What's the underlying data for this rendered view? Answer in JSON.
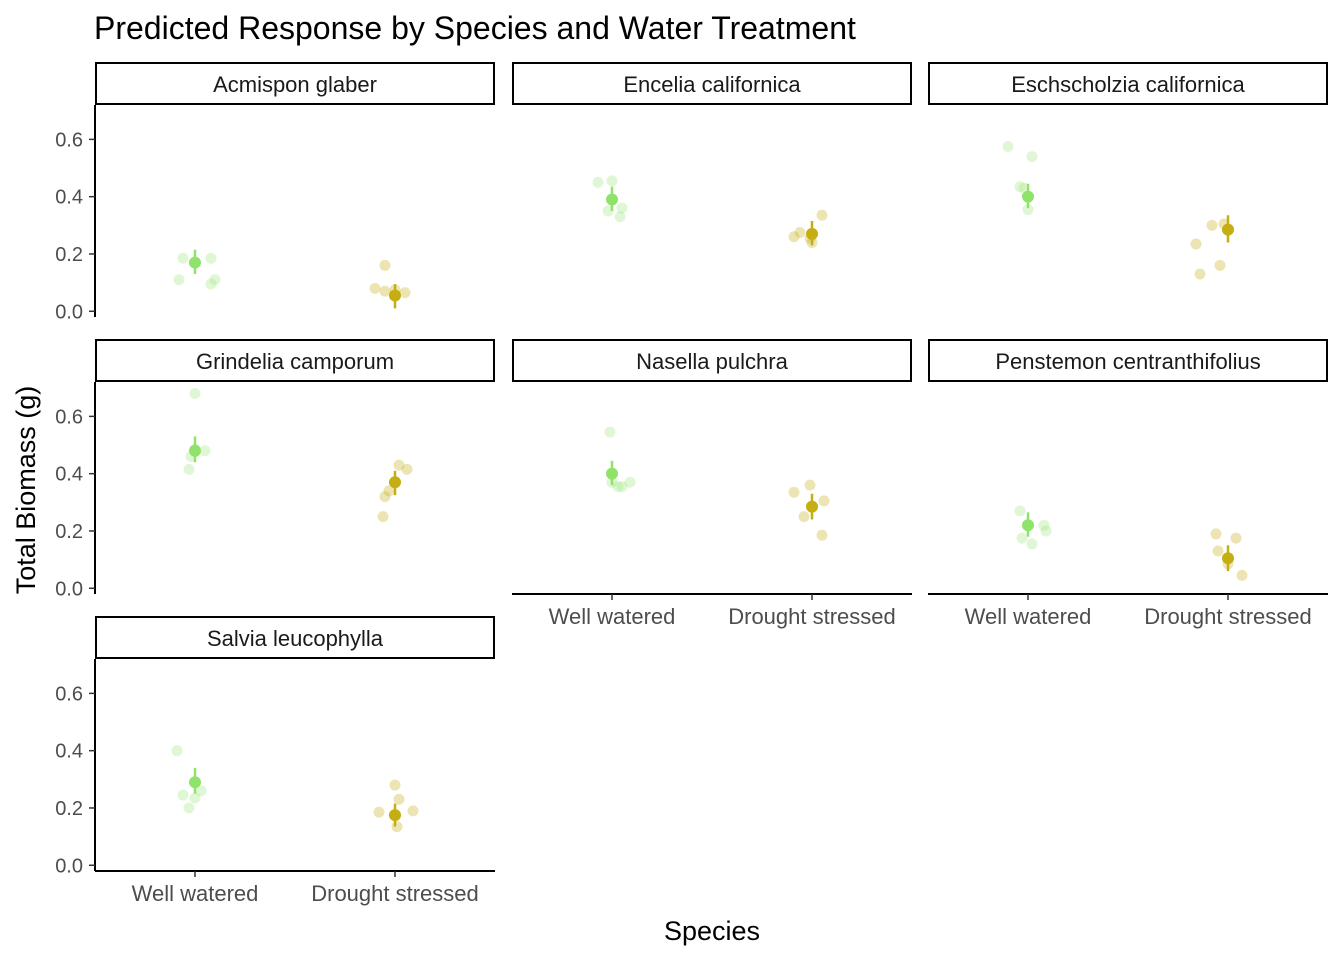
{
  "chart_data": {
    "type": "scatter",
    "title": "Predicted Response by Species and Water Treatment",
    "xlabel": "Species",
    "ylabel": "Total Biomass (g)",
    "categories": [
      "Well watered",
      "Drought stressed"
    ],
    "ylim": [
      -0.02,
      0.72
    ],
    "yticks": [
      "0.0",
      "0.2",
      "0.4",
      "0.6"
    ],
    "colors": {
      "Well watered": "#90E36A",
      "Drought stressed": "#C4AE12"
    },
    "grid": false,
    "legend": "none",
    "panels": [
      {
        "facet": "Acmispon glaber",
        "mean": [
          0.17,
          0.055
        ],
        "ci": [
          [
            0.13,
            0.215
          ],
          [
            0.01,
            0.095
          ]
        ],
        "raw": [
          [
            [
              -0.08,
              0.11
            ],
            [
              -0.06,
              0.185
            ],
            [
              0.08,
              0.095
            ],
            [
              0.1,
              0.11
            ],
            [
              0.08,
              0.185
            ]
          ],
          [
            [
              -0.1,
              0.08
            ],
            [
              -0.05,
              0.07
            ],
            [
              -0.05,
              0.16
            ],
            [
              0.05,
              0.065
            ],
            [
              0.0,
              0.075
            ]
          ]
        ]
      },
      {
        "facet": "Encelia californica",
        "mean": [
          0.39,
          0.27
        ],
        "ci": [
          [
            0.35,
            0.435
          ],
          [
            0.23,
            0.315
          ]
        ],
        "raw": [
          [
            [
              -0.07,
              0.45
            ],
            [
              0.0,
              0.455
            ],
            [
              -0.02,
              0.35
            ],
            [
              0.05,
              0.36
            ],
            [
              0.04,
              0.33
            ]
          ],
          [
            [
              -0.09,
              0.26
            ],
            [
              -0.06,
              0.275
            ],
            [
              0.0,
              0.24
            ],
            [
              0.05,
              0.335
            ],
            [
              -0.01,
              0.255
            ]
          ]
        ]
      },
      {
        "facet": "Eschscholzia californica",
        "mean": [
          0.4,
          0.285
        ],
        "ci": [
          [
            0.36,
            0.445
          ],
          [
            0.24,
            0.335
          ]
        ],
        "raw": [
          [
            [
              -0.1,
              0.575
            ],
            [
              0.02,
              0.54
            ],
            [
              -0.04,
              0.435
            ],
            [
              0.0,
              0.355
            ],
            [
              -0.02,
              0.43
            ]
          ],
          [
            [
              -0.16,
              0.235
            ],
            [
              -0.08,
              0.3
            ],
            [
              -0.04,
              0.16
            ],
            [
              -0.14,
              0.13
            ],
            [
              -0.02,
              0.305
            ]
          ]
        ]
      },
      {
        "facet": "Grindelia camporum",
        "mean": [
          0.48,
          0.37
        ],
        "ci": [
          [
            0.44,
            0.53
          ],
          [
            0.325,
            0.41
          ]
        ],
        "raw": [
          [
            [
              -0.03,
              0.415
            ],
            [
              0.0,
              0.68
            ],
            [
              0.05,
              0.48
            ],
            [
              0.0,
              0.485
            ],
            [
              -0.02,
              0.46
            ]
          ],
          [
            [
              -0.06,
              0.25
            ],
            [
              -0.05,
              0.32
            ],
            [
              0.02,
              0.43
            ],
            [
              0.06,
              0.415
            ],
            [
              -0.03,
              0.34
            ]
          ]
        ]
      },
      {
        "facet": "Nasella pulchra",
        "mean": [
          0.4,
          0.285
        ],
        "ci": [
          [
            0.36,
            0.445
          ],
          [
            0.24,
            0.33
          ]
        ],
        "raw": [
          [
            [
              -0.01,
              0.545
            ],
            [
              0.0,
              0.37
            ],
            [
              0.05,
              0.355
            ],
            [
              0.09,
              0.37
            ],
            [
              0.03,
              0.355
            ]
          ],
          [
            [
              -0.09,
              0.335
            ],
            [
              -0.04,
              0.25
            ],
            [
              -0.01,
              0.36
            ],
            [
              0.06,
              0.305
            ],
            [
              0.05,
              0.185
            ]
          ]
        ]
      },
      {
        "facet": "Penstemon centranthifolius",
        "mean": [
          0.22,
          0.105
        ],
        "ci": [
          [
            0.18,
            0.265
          ],
          [
            0.06,
            0.15
          ]
        ],
        "raw": [
          [
            [
              -0.04,
              0.27
            ],
            [
              -0.03,
              0.175
            ],
            [
              0.02,
              0.155
            ],
            [
              0.08,
              0.22
            ],
            [
              0.09,
              0.2
            ]
          ],
          [
            [
              -0.06,
              0.19
            ],
            [
              -0.05,
              0.13
            ],
            [
              0.04,
              0.175
            ],
            [
              0.0,
              0.085
            ],
            [
              0.07,
              0.045
            ]
          ]
        ]
      },
      {
        "facet": "Salvia leucophylla",
        "mean": [
          0.29,
          0.175
        ],
        "ci": [
          [
            0.25,
            0.34
          ],
          [
            0.135,
            0.215
          ]
        ],
        "raw": [
          [
            [
              -0.09,
              0.4
            ],
            [
              -0.06,
              0.245
            ],
            [
              -0.03,
              0.2
            ],
            [
              0.0,
              0.235
            ],
            [
              0.03,
              0.26
            ]
          ],
          [
            [
              -0.08,
              0.185
            ],
            [
              0.0,
              0.28
            ],
            [
              0.01,
              0.135
            ],
            [
              0.02,
              0.23
            ],
            [
              0.09,
              0.19
            ]
          ]
        ]
      }
    ]
  }
}
